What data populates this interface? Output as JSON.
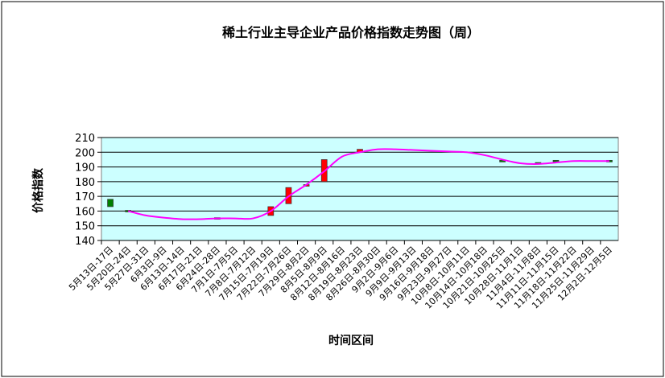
{
  "chart_data": {
    "type": "candlestick-line",
    "title": "稀土行业主导企业产品价格指数走势图（周）",
    "x_label": "时间区间",
    "y_label": "价格指数",
    "categories": [
      "5月13日-17日",
      "5月20日-24日",
      "5月27日-31日",
      "6月3日-9日",
      "6月13日-14日",
      "6月17日-21日",
      "6月24日-28日",
      "7月1日-7月5日",
      "7月8日-7月12日",
      "7月15日-7月19日",
      "7月22日-7月26日",
      "7月29日-8月2日",
      "8月5日-8月9日",
      "8月12日-8月16日",
      "8月19日-8月23日",
      "8月26日-8月30日",
      "9月2日-9月6日",
      "9月9日-9月13日",
      "9月16日-9月18日",
      "9月23日-9月27日",
      "10月8日-10月11日",
      "10月14日-10月18日",
      "10月21日-10月25日",
      "10月28日-11月1日",
      "11月4日-11月8日",
      "11月11日-11月15日",
      "11月18日-11月22日",
      "11月25日-11月29日",
      "12月2日-12月5日"
    ],
    "open": [
      168,
      160.5,
      null,
      null,
      null,
      null,
      155,
      null,
      null,
      157,
      165,
      177,
      180,
      null,
      200,
      null,
      null,
      null,
      null,
      null,
      null,
      null,
      194.5,
      null,
      193,
      194.5,
      null,
      null,
      194.5
    ],
    "close": [
      163,
      160,
      null,
      null,
      null,
      null,
      155.5,
      null,
      null,
      163,
      176,
      178,
      195,
      null,
      202,
      null,
      null,
      null,
      null,
      null,
      null,
      null,
      194,
      null,
      192,
      194,
      null,
      null,
      194
    ],
    "up_color": "#ff0000",
    "down_color": "#008000",
    "line": {
      "color": "#ff00ff",
      "values": [
        null,
        160,
        157,
        155.5,
        154.5,
        154.5,
        155,
        155,
        155,
        160,
        170,
        178,
        187,
        197,
        200,
        202,
        202,
        201.5,
        201,
        200.5,
        200,
        198,
        195,
        192.5,
        192,
        193,
        194,
        194,
        194
      ]
    },
    "ylim": [
      140,
      210
    ],
    "yticks": [
      140,
      150,
      160,
      170,
      180,
      190,
      200,
      210
    ],
    "grid": true,
    "plot_background": "#ccffff"
  }
}
